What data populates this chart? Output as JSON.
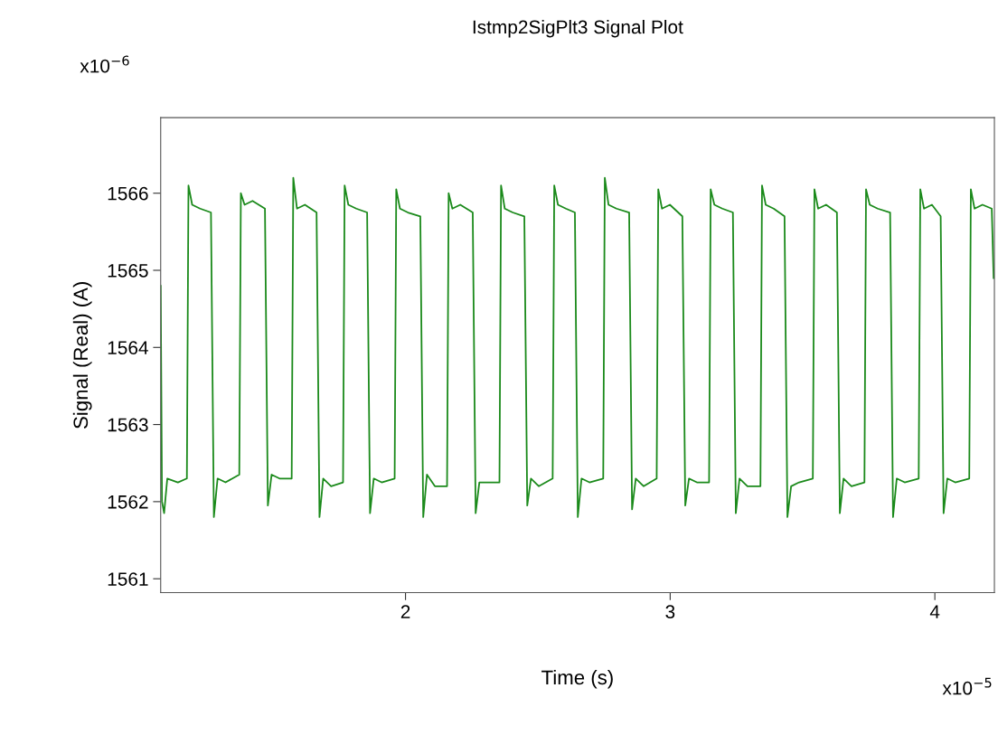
{
  "chart_data": {
    "type": "line",
    "title": "Istmp2SigPlt3 Signal Plot",
    "xlabel": "Time (s)",
    "ylabel": "Signal (Real) (A)",
    "annotations": [
      "x10$^{−6}$",
      "x10$^{−5}$"
    ],
    "xlim": [
      1.075,
      4.225
    ],
    "xticks": [
      2,
      3,
      4
    ],
    "ylim": [
      1560.82,
      1566.98
    ],
    "yticks": [
      1561,
      1562,
      1563,
      1564,
      1565,
      1566
    ],
    "grid": false,
    "legend": false,
    "marker": "none",
    "line_style": "solid",
    "series": [
      {
        "color": "#1b8a1b",
        "x": [
          1.075,
          1.08,
          1.088,
          1.1,
          1.14,
          1.174,
          1.18,
          1.194,
          1.224,
          1.265,
          1.276,
          1.29,
          1.32,
          1.372,
          1.378,
          1.392,
          1.422,
          1.469,
          1.48,
          1.494,
          1.524,
          1.57,
          1.576,
          1.59,
          1.62,
          1.664,
          1.675,
          1.689,
          1.719,
          1.764,
          1.77,
          1.784,
          1.814,
          1.855,
          1.866,
          1.88,
          1.91,
          1.959,
          1.965,
          1.979,
          2.009,
          2.056,
          2.067,
          2.081,
          2.111,
          2.157,
          2.163,
          2.177,
          2.207,
          2.254,
          2.265,
          2.279,
          2.309,
          2.355,
          2.361,
          2.375,
          2.405,
          2.449,
          2.46,
          2.474,
          2.504,
          2.556,
          2.562,
          2.576,
          2.606,
          2.64,
          2.651,
          2.665,
          2.695,
          2.747,
          2.753,
          2.767,
          2.797,
          2.845,
          2.856,
          2.87,
          2.9,
          2.949,
          2.955,
          2.969,
          2.999,
          3.046,
          3.057,
          3.071,
          3.101,
          3.147,
          3.153,
          3.167,
          3.197,
          3.237,
          3.248,
          3.262,
          3.292,
          3.341,
          3.347,
          3.361,
          3.391,
          3.432,
          3.443,
          3.457,
          3.487,
          3.539,
          3.545,
          3.559,
          3.589,
          3.63,
          3.641,
          3.655,
          3.685,
          3.734,
          3.74,
          3.754,
          3.784,
          3.831,
          3.842,
          3.856,
          3.886,
          3.939,
          3.945,
          3.959,
          3.989,
          4.022,
          4.033,
          4.047,
          4.077,
          4.13,
          4.136,
          4.15,
          4.18,
          4.215,
          4.222
        ],
        "values": [
          1564.8,
          1562.0,
          1561.85,
          1562.3,
          1562.25,
          1562.3,
          1566.1,
          1565.85,
          1565.8,
          1565.75,
          1561.8,
          1562.3,
          1562.25,
          1562.35,
          1566.0,
          1565.85,
          1565.9,
          1565.8,
          1561.95,
          1562.35,
          1562.3,
          1562.3,
          1566.2,
          1565.8,
          1565.85,
          1565.75,
          1561.8,
          1562.3,
          1562.2,
          1562.25,
          1566.1,
          1565.85,
          1565.8,
          1565.75,
          1561.85,
          1562.3,
          1562.25,
          1562.3,
          1566.05,
          1565.8,
          1565.75,
          1565.7,
          1561.8,
          1562.35,
          1562.2,
          1562.2,
          1566.0,
          1565.8,
          1565.85,
          1565.75,
          1561.85,
          1562.25,
          1562.25,
          1562.25,
          1566.1,
          1565.8,
          1565.75,
          1565.7,
          1561.95,
          1562.3,
          1562.2,
          1562.3,
          1566.1,
          1565.85,
          1565.8,
          1565.75,
          1561.8,
          1562.3,
          1562.25,
          1562.3,
          1566.2,
          1565.85,
          1565.8,
          1565.75,
          1561.9,
          1562.3,
          1562.2,
          1562.3,
          1566.05,
          1565.8,
          1565.85,
          1565.7,
          1561.95,
          1562.3,
          1562.25,
          1562.25,
          1566.05,
          1565.85,
          1565.8,
          1565.75,
          1561.85,
          1562.3,
          1562.2,
          1562.2,
          1566.1,
          1565.85,
          1565.8,
          1565.7,
          1561.8,
          1562.2,
          1562.25,
          1562.3,
          1566.05,
          1565.8,
          1565.85,
          1565.75,
          1561.85,
          1562.3,
          1562.2,
          1562.25,
          1566.05,
          1565.85,
          1565.8,
          1565.75,
          1561.8,
          1562.3,
          1562.25,
          1562.3,
          1566.05,
          1565.8,
          1565.85,
          1565.7,
          1561.85,
          1562.3,
          1562.25,
          1562.3,
          1566.05,
          1565.8,
          1565.85,
          1565.8,
          1564.9
        ]
      }
    ]
  }
}
